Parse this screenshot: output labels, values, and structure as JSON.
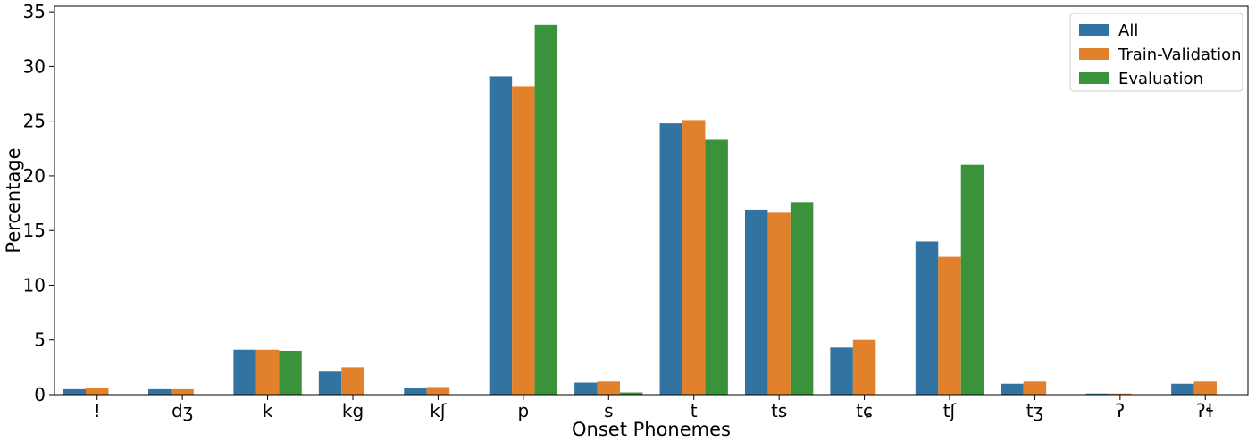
{
  "chart_data": {
    "type": "bar",
    "title": "",
    "xlabel": "Onset Phonemes",
    "ylabel": "Percentage",
    "ylim": [
      0,
      35.5
    ],
    "yticks": [
      0,
      5,
      10,
      15,
      20,
      25,
      30,
      35
    ],
    "grid": false,
    "legend_position": "top-right",
    "categories": [
      "!",
      "dʒ",
      "k",
      "kg",
      "kʃ",
      "p",
      "s",
      "t",
      "ts",
      "tɕ",
      "tʃ",
      "tʒ",
      "ʔ",
      "ʔɬ"
    ],
    "series": [
      {
        "name": "All",
        "color": "#3274a1",
        "values": [
          0.5,
          0.5,
          4.1,
          2.1,
          0.6,
          29.1,
          1.1,
          24.8,
          16.9,
          4.3,
          14.0,
          1.0,
          0.1,
          1.0
        ]
      },
      {
        "name": "Train-Validation",
        "color": "#e1812c",
        "values": [
          0.6,
          0.5,
          4.1,
          2.5,
          0.7,
          28.2,
          1.2,
          25.1,
          16.7,
          5.0,
          12.6,
          1.2,
          0.1,
          1.2
        ]
      },
      {
        "name": "Evaluation",
        "color": "#3a923a",
        "values": [
          0.0,
          0.0,
          4.0,
          0.0,
          0.0,
          33.8,
          0.2,
          23.3,
          17.6,
          0.0,
          21.0,
          0.0,
          0.0,
          0.0
        ]
      }
    ]
  }
}
